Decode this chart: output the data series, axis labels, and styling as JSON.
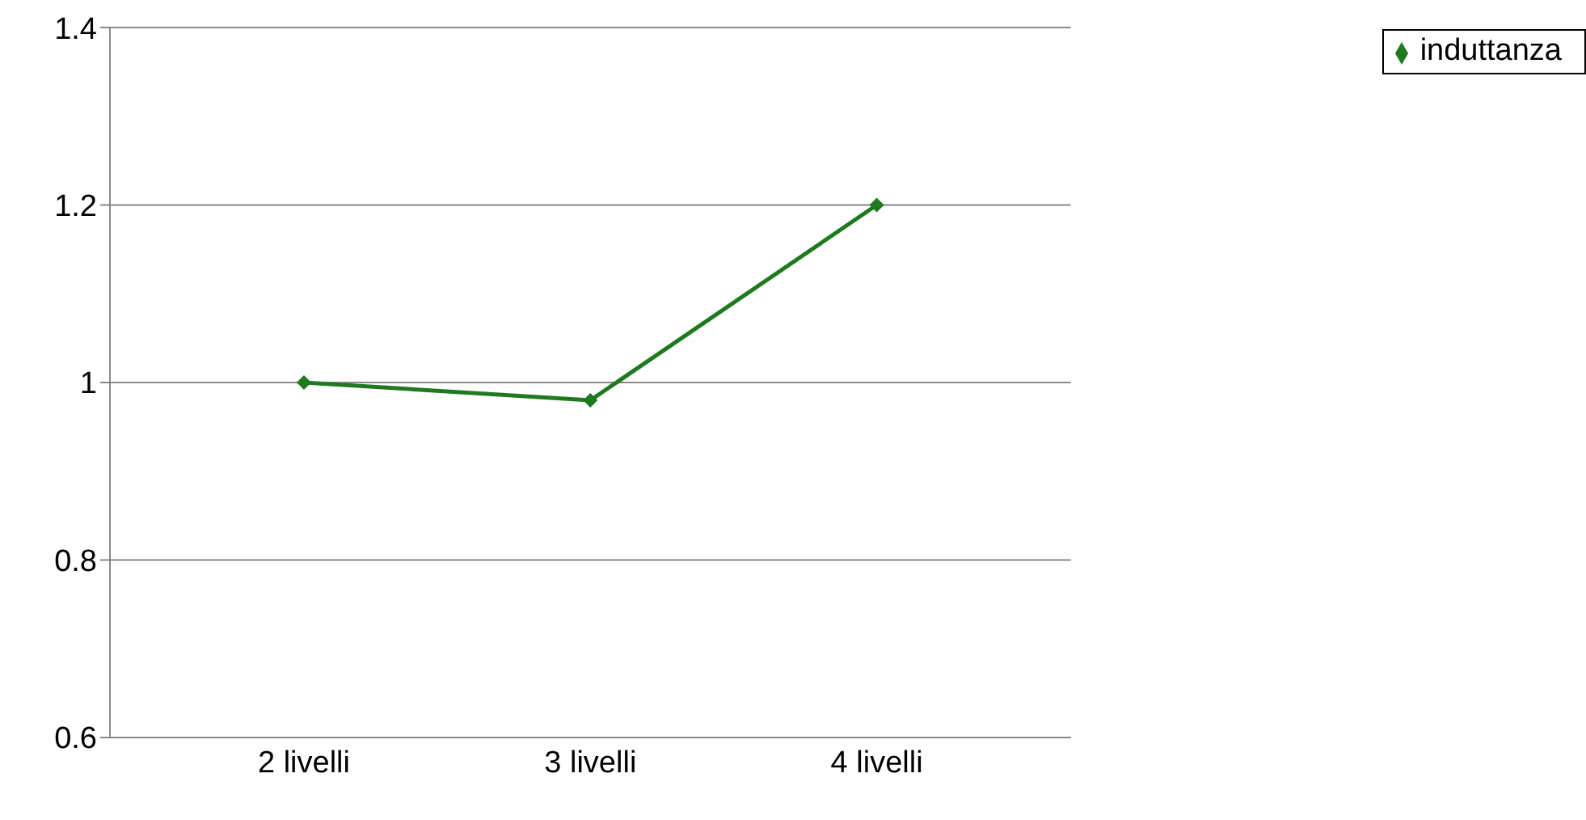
{
  "chart_data": {
    "type": "line",
    "categories": [
      "2 livelli",
      "3 livelli",
      "4 livelli"
    ],
    "series": [
      {
        "name": "induttanza",
        "color": "#1f7a1f",
        "values": [
          1.0,
          0.98,
          1.2
        ]
      }
    ],
    "ylim": [
      0.6,
      1.4
    ],
    "yticks": [
      0.6,
      0.8,
      1,
      1.2,
      1.4
    ],
    "grid": "y",
    "legend": "top right",
    "marker": "diamond",
    "line_style": "solid"
  }
}
